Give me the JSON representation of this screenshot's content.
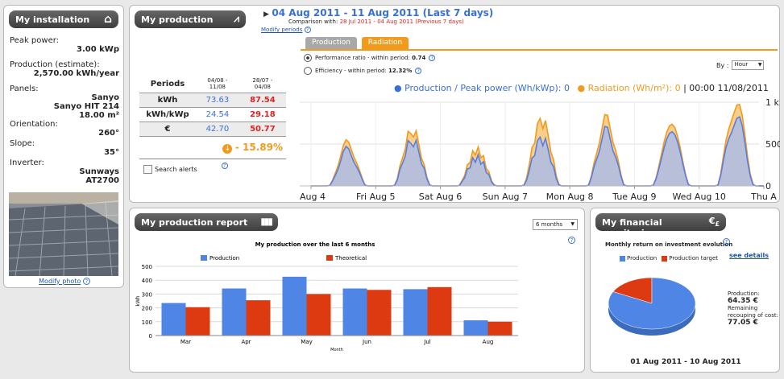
{
  "installation": {
    "title": "My installation",
    "peak_power_label": "Peak power:",
    "peak_power_value": "3.00 kWp",
    "production_label": "Production (estimate):",
    "production_value": "2,570.00 kWh/year",
    "panels_label": "Panels:",
    "panels_brand": "Sanyo",
    "panels_model": "Sanyo HIT 214",
    "panels_area": "18.00 m²",
    "orientation_label": "Orientation:",
    "orientation_value": "260°",
    "slope_label": "Slope:",
    "slope_value": "35°",
    "inverter_label": "Inverter:",
    "inverter_brand": "Sunways",
    "inverter_model": "AT2700",
    "modify_photo": "Modify photo"
  },
  "production": {
    "title": "My production",
    "date_range": "04 Aug 2011 - 11 Aug 2011 (Last 7 days)",
    "comparison_label": "Comparison with:",
    "comparison_value": "28 Jul 2011 - 04 Aug 2011 (Previous 7 days)",
    "modify_periods": "Modify periods",
    "periods_header": "Periods",
    "col1_header_a": "04/08 -",
    "col1_header_b": "11/08",
    "col2_header_a": "28/07 -",
    "col2_header_b": "04/08",
    "rows": [
      {
        "label": "kWh",
        "current": "73.63",
        "previous": "87.54"
      },
      {
        "label": "kWh/kWp",
        "current": "24.54",
        "previous": "29.18"
      },
      {
        "label": "€",
        "current": "42.70",
        "previous": "50.77"
      }
    ],
    "change": "- 15.89%",
    "search_alerts": "Search alerts",
    "tabs": [
      "Production",
      "Radiation"
    ],
    "active_tab": "Radiation",
    "perf_ratio_label": "Performance ratio - within period:",
    "perf_ratio_value": "0.74",
    "efficiency_label": "Efficiency - within period:",
    "efficiency_value": "12.32%",
    "by_label": "By :",
    "by_value": "Hour",
    "legend_production": "Production / Peak power (Wh/kWp): 0",
    "legend_radiation": "Radiation (Wh/m²): 0",
    "legend_time": "| 00:00 11/08/2011",
    "colors": {
      "production": "#5b7ee0",
      "radiation": "#f29a1c"
    }
  },
  "report": {
    "title": "My production report",
    "range_select": "6 months",
    "chart_title": "My production over the last 6 months",
    "legend_production": "Production",
    "legend_theoretical": "Theoretical"
  },
  "financial": {
    "title": "My financial monitoring",
    "chart_title": "Monthly return on investment evolution",
    "see_details": "see details",
    "legend_production": "Production",
    "legend_target": "Production target",
    "production_label": "Production:",
    "production_value": "64.35 €",
    "remaining_label_a": "Remaining",
    "remaining_label_b": "recouping of cost:",
    "remaining_value": "77.05 €",
    "period": "01 Aug 2011 - 10 Aug 2011"
  },
  "chart_data": [
    {
      "type": "area",
      "title": "",
      "x_labels": [
        "Aug 4",
        "Fri Aug 5",
        "Sat Aug 6",
        "Sun Aug 7",
        "Mon Aug 8",
        "Tue Aug 9",
        "Wed Aug 10",
        "Thu A"
      ],
      "y_tick_labels": [
        "1 k",
        "500",
        "0"
      ],
      "ylim": [
        0,
        1000
      ],
      "series": [
        {
          "name": "Production / Peak power (Wh/kWp)",
          "daily_peaks": [
            420,
            530,
            330,
            560,
            640,
            690,
            820
          ]
        },
        {
          "name": "Radiation (Wh/m²)",
          "daily_peaks": [
            500,
            650,
            420,
            780,
            780,
            780,
            980
          ]
        }
      ]
    },
    {
      "type": "bar",
      "title": "My production over the last 6 months",
      "categories": [
        "Mar",
        "Apr",
        "May",
        "Jun",
        "Jul",
        "Aug"
      ],
      "xlabel": "Month",
      "ylabel": "kWh",
      "ylim": [
        0,
        500
      ],
      "yticks": [
        0,
        100,
        200,
        300,
        400,
        500
      ],
      "series": [
        {
          "name": "Production",
          "values": [
            235,
            340,
            425,
            340,
            335,
            110
          ],
          "color": "#4f86e6"
        },
        {
          "name": "Theoretical",
          "values": [
            205,
            255,
            300,
            330,
            350,
            100
          ],
          "color": "#dd3a12"
        }
      ]
    },
    {
      "type": "pie",
      "title": "Monthly return on investment evolution",
      "labels": [
        "Production",
        "Production target"
      ],
      "values": [
        64.35,
        13.65
      ],
      "colors": [
        "#4f86e6",
        "#dd3a12"
      ]
    }
  ]
}
